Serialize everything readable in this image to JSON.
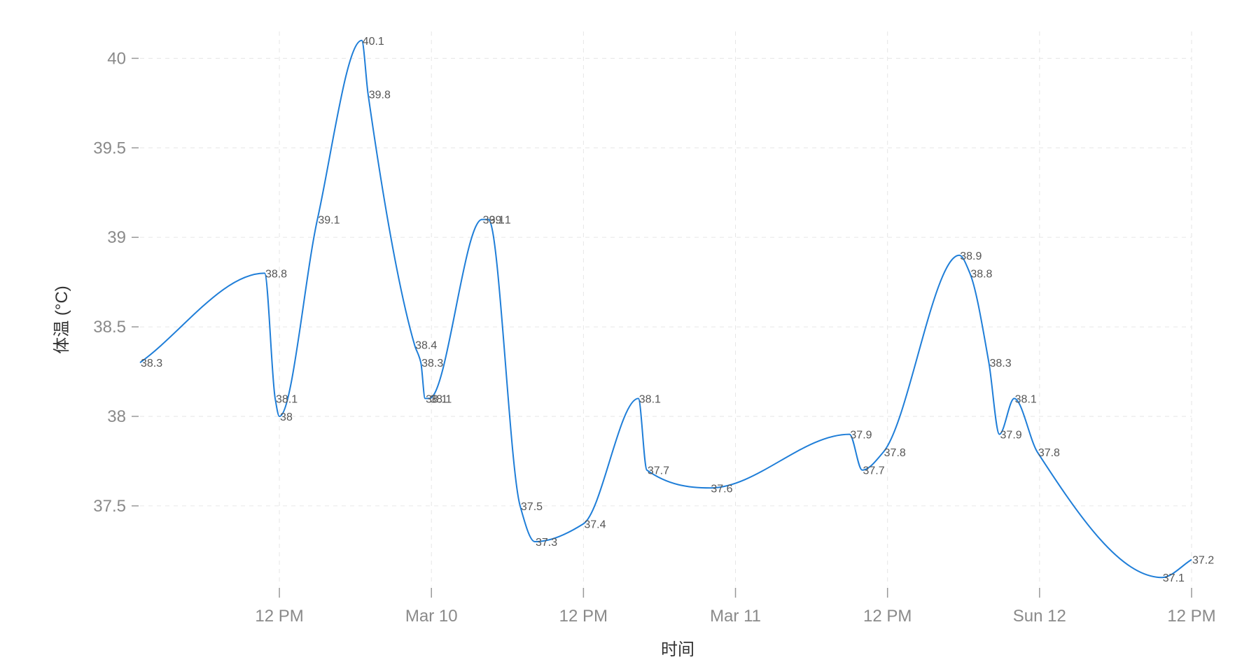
{
  "chart_data": {
    "type": "line",
    "xlabel": "时间",
    "ylabel": "体温 (°C)",
    "x_range": [
      "2024-03-09 01:00",
      "2024-03-12 12:00"
    ],
    "ylim": [
      37.05,
      40.15
    ],
    "y_ticks": [
      {
        "value": 37.5,
        "label": "37.5"
      },
      {
        "value": 38,
        "label": "38"
      },
      {
        "value": 38.5,
        "label": "38.5"
      },
      {
        "value": 39,
        "label": "39"
      },
      {
        "value": 39.5,
        "label": "39.5"
      },
      {
        "value": 40,
        "label": "40"
      }
    ],
    "x_ticks": [
      {
        "value": "2024-03-09 12:00",
        "label": "12 PM"
      },
      {
        "value": "2024-03-10 00:00",
        "label": "Mar 10"
      },
      {
        "value": "2024-03-10 12:00",
        "label": "12 PM"
      },
      {
        "value": "2024-03-11 00:00",
        "label": "Mar 11"
      },
      {
        "value": "2024-03-11 12:00",
        "label": "12 PM"
      },
      {
        "value": "2024-03-12 00:00",
        "label": "Sun 12"
      },
      {
        "value": "2024-03-12 12:00",
        "label": "12 PM"
      }
    ],
    "grid": true,
    "line_color": "#1f7ed8",
    "series": [
      {
        "points": [
          {
            "x": "2024-03-09 01:00",
            "y": 38.3
          },
          {
            "x": "2024-03-09 10:50",
            "y": 38.8
          },
          {
            "x": "2024-03-09 11:40",
            "y": 38.1
          },
          {
            "x": "2024-03-09 12:00",
            "y": 38.0
          },
          {
            "x": "2024-03-09 15:00",
            "y": 39.1
          },
          {
            "x": "2024-03-09 18:30",
            "y": 40.1
          },
          {
            "x": "2024-03-09 19:00",
            "y": 39.8
          },
          {
            "x": "2024-03-09 22:40",
            "y": 38.4
          },
          {
            "x": "2024-03-09 23:10",
            "y": 38.3
          },
          {
            "x": "2024-03-09 23:30",
            "y": 38.1
          },
          {
            "x": "2024-03-09 23:50",
            "y": 38.1
          },
          {
            "x": "2024-03-10 04:00",
            "y": 39.1
          },
          {
            "x": "2024-03-10 04:30",
            "y": 39.1
          },
          {
            "x": "2024-03-10 07:00",
            "y": 37.5
          },
          {
            "x": "2024-03-10 08:10",
            "y": 37.3
          },
          {
            "x": "2024-03-10 12:00",
            "y": 37.4
          },
          {
            "x": "2024-03-10 16:20",
            "y": 38.1
          },
          {
            "x": "2024-03-10 17:00",
            "y": 37.7
          },
          {
            "x": "2024-03-10 22:00",
            "y": 37.6
          },
          {
            "x": "2024-03-11 09:00",
            "y": 37.9
          },
          {
            "x": "2024-03-11 10:00",
            "y": 37.7
          },
          {
            "x": "2024-03-11 11:40",
            "y": 37.8
          },
          {
            "x": "2024-03-11 17:40",
            "y": 38.9
          },
          {
            "x": "2024-03-11 18:30",
            "y": 38.8
          },
          {
            "x": "2024-03-11 20:00",
            "y": 38.3
          },
          {
            "x": "2024-03-11 20:50",
            "y": 37.9
          },
          {
            "x": "2024-03-11 22:00",
            "y": 38.1
          },
          {
            "x": "2024-03-11 23:50",
            "y": 37.8
          },
          {
            "x": "2024-03-12 09:40",
            "y": 37.1
          },
          {
            "x": "2024-03-12 12:00",
            "y": 37.2
          }
        ]
      }
    ]
  }
}
